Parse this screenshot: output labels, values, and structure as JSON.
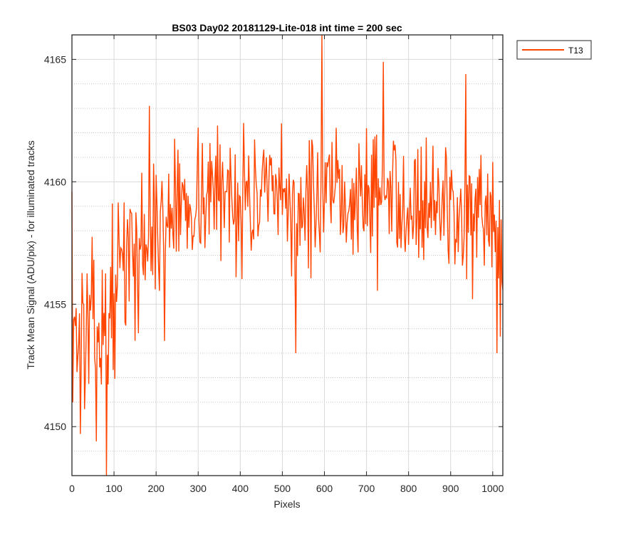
{
  "chart_data": {
    "type": "line",
    "title": "BS03 Day02 20181129-Lite-018 int time = 200 sec",
    "xlabel": "Pixels",
    "ylabel": "Track Mean Signal (ADU/pix) - for illuminated tracks",
    "xlim": [
      0,
      1024
    ],
    "ylim": [
      4148,
      4166
    ],
    "x_ticks": [
      0,
      100,
      200,
      300,
      400,
      500,
      600,
      700,
      800,
      900,
      1000
    ],
    "y_ticks": [
      4150,
      4155,
      4160,
      4165
    ],
    "y_minor_ticks": [
      4149,
      4151,
      4152,
      4153,
      4154,
      4156,
      4157,
      4158,
      4159,
      4161,
      4162,
      4163,
      4164
    ],
    "grid": true,
    "minor_grid": true,
    "legend_position": "outside-top-right",
    "series": [
      {
        "name": "T13",
        "color": "#FF4500",
        "x_start": 0,
        "x_step": 2,
        "trend": [
          [
            0,
            4154
          ],
          [
            50,
            4153.8
          ],
          [
            80,
            4154
          ],
          [
            100,
            4155.5
          ],
          [
            110,
            4156.5
          ],
          [
            150,
            4157
          ],
          [
            200,
            4158
          ],
          [
            250,
            4159
          ],
          [
            300,
            4159.5
          ],
          [
            400,
            4159.5
          ],
          [
            500,
            4159
          ],
          [
            600,
            4159
          ],
          [
            700,
            4159.5
          ],
          [
            800,
            4159.5
          ],
          [
            900,
            4159
          ],
          [
            1000,
            4157.5
          ],
          [
            1024,
            4156.5
          ]
        ],
        "noise_amplitude": [
          [
            0,
            2.4
          ],
          [
            110,
            2.4
          ],
          [
            120,
            2.1
          ],
          [
            1024,
            2.1
          ]
        ],
        "extremes": [
          [
            0,
            4159.6
          ],
          [
            20,
            4149.7
          ],
          [
            57,
            4149.4
          ],
          [
            82,
            4148
          ],
          [
            184,
            4163.1
          ],
          [
            220,
            4153.5
          ],
          [
            593,
            4166
          ],
          [
            740,
            4164.9
          ],
          [
            935,
            4164.4
          ],
          [
            532,
            4153
          ],
          [
            1010,
            4153
          ]
        ],
        "seed": 13
      }
    ]
  },
  "colors": {
    "axes": "#262626",
    "grid": "#d9d9d9",
    "minor_grid": "#c8c8c8",
    "line": "#FF4500"
  }
}
